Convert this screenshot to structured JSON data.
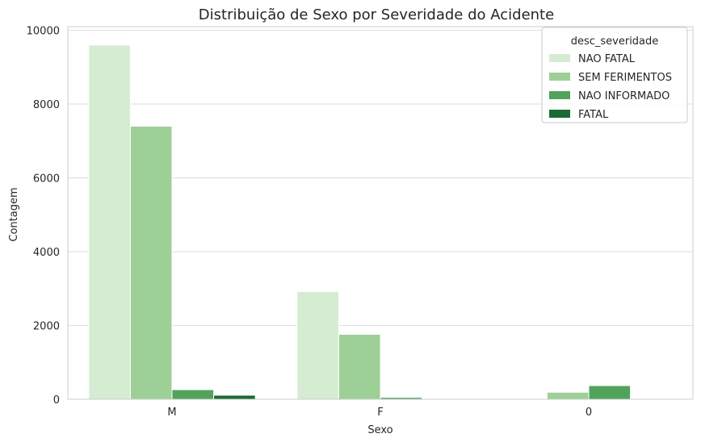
{
  "chart_data": {
    "type": "bar",
    "title": "Distribuição de Sexo por Severidade do Acidente",
    "xlabel": "Sexo",
    "ylabel": "Contagem",
    "categories": [
      "M",
      "F",
      "0"
    ],
    "ylim": [
      0,
      10100
    ],
    "yticks": [
      0,
      2000,
      4000,
      6000,
      8000,
      10000
    ],
    "grid": true,
    "legend": {
      "title": "desc_severidade",
      "placement": "top-right"
    },
    "series": [
      {
        "name": "NAO FATAL",
        "color": "#d5ecd2",
        "values": [
          9600,
          2920,
          0
        ]
      },
      {
        "name": "SEM FERIMENTOS",
        "color": "#9dd096",
        "values": [
          7400,
          1760,
          190
        ]
      },
      {
        "name": "NAO INFORMADO",
        "color": "#51a35c",
        "values": [
          260,
          50,
          370
        ]
      },
      {
        "name": "FATAL",
        "color": "#1b6b35",
        "values": [
          110,
          0,
          0
        ]
      }
    ]
  }
}
